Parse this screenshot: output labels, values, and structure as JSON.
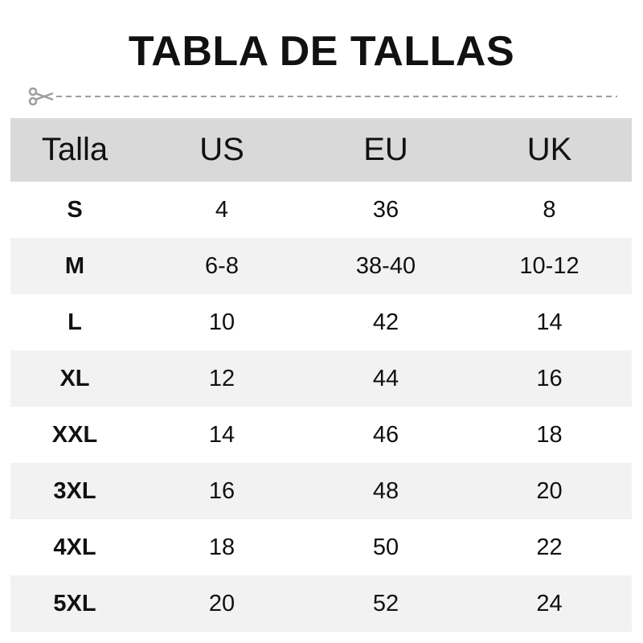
{
  "title": "TABLA DE TALLAS",
  "colors": {
    "header_bg": "#d9d9d9",
    "alt_row_bg": "#f2f2f2",
    "cutline": "#9e9e9e"
  },
  "icons": {
    "cut": "scissors-icon"
  },
  "table": {
    "headers": [
      "Talla",
      "US",
      "EU",
      "UK"
    ],
    "rows": [
      [
        "S",
        "4",
        "36",
        "8"
      ],
      [
        "M",
        "6-8",
        "38-40",
        "10-12"
      ],
      [
        "L",
        "10",
        "42",
        "14"
      ],
      [
        "XL",
        "12",
        "44",
        "16"
      ],
      [
        "XXL",
        "14",
        "46",
        "18"
      ],
      [
        "3XL",
        "16",
        "48",
        "20"
      ],
      [
        "4XL",
        "18",
        "50",
        "22"
      ],
      [
        "5XL",
        "20",
        "52",
        "24"
      ]
    ]
  }
}
